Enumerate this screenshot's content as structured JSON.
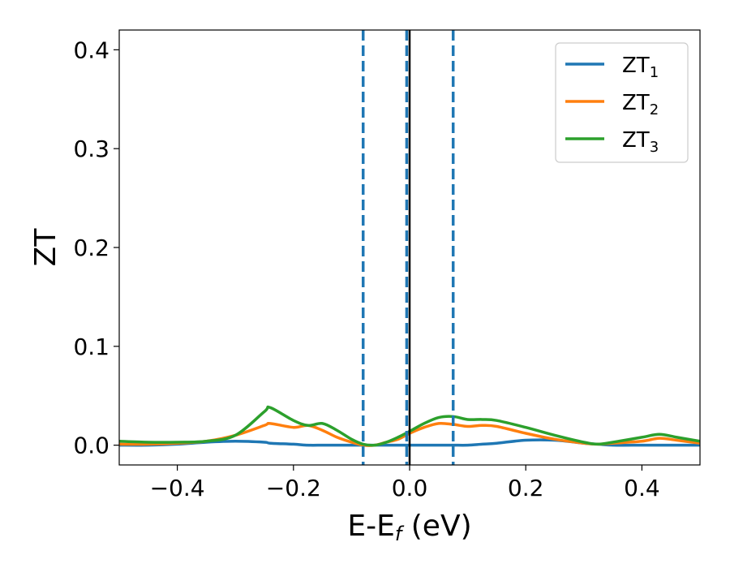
{
  "chart_data": {
    "type": "line",
    "title": "",
    "xlabel": {
      "text": "E-E",
      "sub": "f",
      "unit": " (eV)"
    },
    "ylabel": "ZT",
    "xlim": [
      -0.5,
      0.5
    ],
    "ylim": [
      -0.02,
      0.42
    ],
    "x_ticks": [
      -0.4,
      -0.2,
      0.0,
      0.2,
      0.4
    ],
    "x_tick_labels": [
      "−0.4",
      "−0.2",
      "0.0",
      "0.2",
      "0.4"
    ],
    "y_ticks": [
      0.0,
      0.1,
      0.2,
      0.3,
      0.4
    ],
    "y_tick_labels": [
      "0.0",
      "0.1",
      "0.2",
      "0.3",
      "0.4"
    ],
    "grid": false,
    "legend_placement": "top-right",
    "vlines": [
      {
        "x": -0.08,
        "style": "dashed",
        "color": "#1f77b4"
      },
      {
        "x": -0.005,
        "style": "dashed",
        "color": "#1f77b4"
      },
      {
        "x": 0.075,
        "style": "dashed",
        "color": "#1f77b4"
      },
      {
        "x": 0.0,
        "style": "solid",
        "color": "#000000"
      }
    ],
    "x": [
      -0.5,
      -0.45,
      -0.4,
      -0.35,
      -0.3,
      -0.25,
      -0.24,
      -0.2,
      -0.175,
      -0.15,
      -0.125,
      -0.1,
      -0.08,
      -0.06,
      -0.04,
      -0.02,
      0.0,
      0.025,
      0.05,
      0.075,
      0.1,
      0.125,
      0.15,
      0.2,
      0.25,
      0.3,
      0.325,
      0.35,
      0.4,
      0.43,
      0.46,
      0.5
    ],
    "series": [
      {
        "name": "ZT",
        "sub": "1",
        "color": "#1f77b4",
        "values": [
          0.0,
          0.0,
          0.001,
          0.003,
          0.004,
          0.003,
          0.002,
          0.001,
          0.0,
          0.0,
          0.0,
          0.0,
          0.0,
          0.0,
          0.0,
          0.0,
          0.0,
          0.0,
          0.0,
          0.0,
          0.0,
          0.001,
          0.002,
          0.005,
          0.005,
          0.002,
          0.001,
          0.0,
          0.0,
          0.0,
          0.0,
          0.0
        ]
      },
      {
        "name": "ZT",
        "sub": "2",
        "color": "#ff7f0e",
        "values": [
          0.001,
          0.001,
          0.002,
          0.004,
          0.01,
          0.02,
          0.022,
          0.018,
          0.02,
          0.015,
          0.008,
          0.003,
          0.0,
          0.0,
          0.003,
          0.006,
          0.012,
          0.018,
          0.022,
          0.021,
          0.019,
          0.02,
          0.019,
          0.012,
          0.006,
          0.002,
          0.001,
          0.002,
          0.004,
          0.007,
          0.005,
          0.002
        ]
      },
      {
        "name": "ZT",
        "sub": "3",
        "color": "#2ca02c",
        "values": [
          0.004,
          0.003,
          0.003,
          0.004,
          0.01,
          0.034,
          0.038,
          0.025,
          0.02,
          0.022,
          0.015,
          0.006,
          0.001,
          0.0,
          0.003,
          0.008,
          0.014,
          0.022,
          0.028,
          0.029,
          0.026,
          0.026,
          0.025,
          0.018,
          0.01,
          0.003,
          0.001,
          0.003,
          0.008,
          0.011,
          0.008,
          0.004
        ]
      }
    ]
  }
}
